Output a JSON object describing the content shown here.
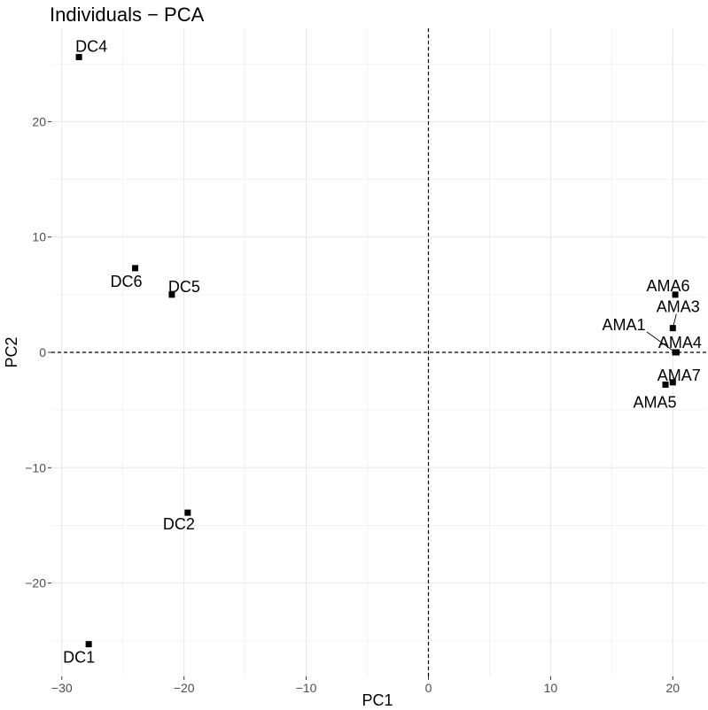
{
  "chart_data": {
    "type": "scatter",
    "title": "Individuals − PCA",
    "xlabel": "PC1",
    "ylabel": "PC2",
    "xlim": [
      -30.5,
      23.5
    ],
    "ylim": [
      -27,
      27
    ],
    "x_ticks": [
      -30,
      -20,
      -10,
      0,
      10,
      20
    ],
    "x_tick_labels": [
      "−30",
      "−20",
      "−10",
      "0",
      "10",
      "20"
    ],
    "y_ticks": [
      -20,
      -10,
      0,
      10,
      20
    ],
    "y_tick_labels": [
      "−20",
      "−10",
      "0",
      "10",
      "20"
    ],
    "grid": true,
    "reference_lines": {
      "x": 0,
      "y": 0,
      "style": "dashed"
    },
    "points": [
      {
        "label": "DC4",
        "x": -28.6,
        "y": 25.6
      },
      {
        "label": "DC6",
        "x": -24.0,
        "y": 7.3
      },
      {
        "label": "DC5",
        "x": -21.0,
        "y": 5.0
      },
      {
        "label": "DC2",
        "x": -19.7,
        "y": -13.9
      },
      {
        "label": "DC1",
        "x": -27.8,
        "y": -25.3
      },
      {
        "label": "AMA6",
        "x": 20.2,
        "y": 5.0
      },
      {
        "label": "AMA3",
        "x": 20.0,
        "y": 2.1
      },
      {
        "label": "AMA1",
        "x": 20.2,
        "y": 0.0
      },
      {
        "label": "AMA4",
        "x": 20.3,
        "y": 0.0
      },
      {
        "label": "AMA7",
        "x": 20.0,
        "y": -2.6
      },
      {
        "label": "AMA5",
        "x": 19.4,
        "y": -2.8
      }
    ]
  }
}
